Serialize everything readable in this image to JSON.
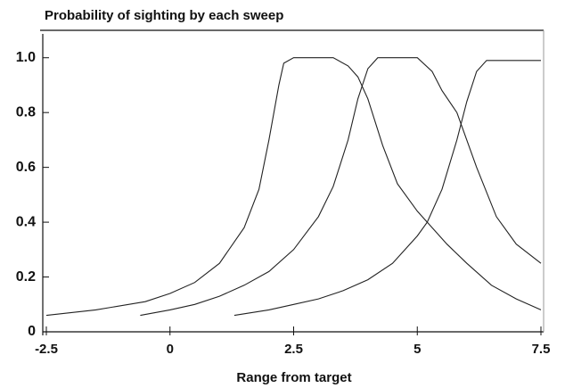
{
  "chart_data": {
    "type": "line",
    "title": "Probability of sighting by each sweep",
    "x_label": "Range from target",
    "xlim": [
      -2.5,
      7.5
    ],
    "ylim": [
      0,
      1.1
    ],
    "xticks": [
      -2.5,
      0,
      2.5,
      5,
      7.5
    ],
    "yticks": [
      0,
      0.2,
      0.4,
      0.6,
      0.8,
      {
        "value": 1,
        "label": "1.0"
      }
    ],
    "series": [
      {
        "color": "#222222",
        "x": [
          -2.5,
          -1.5,
          -0.5,
          0,
          0.5,
          1,
          1.5,
          1.8,
          2.0,
          2.2,
          2.3,
          2.5,
          3.3,
          3.6,
          3.8,
          4.0,
          4.3,
          4.6,
          5.0,
          5.2,
          5.6,
          6,
          6.5,
          7,
          7.5
        ],
        "values": [
          0.06,
          0.08,
          0.11,
          0.14,
          0.18,
          0.25,
          0.38,
          0.52,
          0.7,
          0.9,
          0.98,
          1.0,
          1.0,
          0.97,
          0.93,
          0.85,
          0.68,
          0.54,
          0.44,
          0.4,
          0.32,
          0.25,
          0.17,
          0.12,
          0.08
        ]
      },
      {
        "color": "#222222",
        "x": [
          -0.6,
          0,
          0.5,
          1,
          1.5,
          2,
          2.5,
          3,
          3.3,
          3.6,
          3.8,
          4.0,
          4.2,
          5.0,
          5.3,
          5.5,
          5.8,
          6.2,
          6.6,
          7.0,
          7.5
        ],
        "values": [
          0.06,
          0.08,
          0.1,
          0.13,
          0.17,
          0.22,
          0.3,
          0.42,
          0.53,
          0.7,
          0.85,
          0.96,
          1.0,
          1.0,
          0.95,
          0.88,
          0.8,
          0.6,
          0.42,
          0.32,
          0.25
        ]
      },
      {
        "color": "#222222",
        "x": [
          1.3,
          2,
          2.5,
          3,
          3.5,
          4,
          4.5,
          5,
          5.2,
          5.5,
          5.8,
          6.0,
          6.2,
          6.4,
          7.5
        ],
        "values": [
          0.06,
          0.08,
          0.1,
          0.12,
          0.15,
          0.19,
          0.25,
          0.35,
          0.4,
          0.52,
          0.7,
          0.84,
          0.95,
          0.99,
          0.99
        ]
      }
    ]
  }
}
